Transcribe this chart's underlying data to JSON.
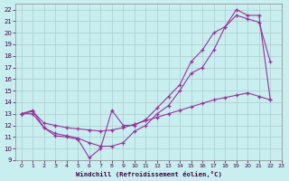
{
  "xlabel": "Windchill (Refroidissement éolien,°C)",
  "line_color": "#993399",
  "bg_color": "#c8eef0",
  "grid_color": "#aacccc",
  "ylim": [
    9,
    22.5
  ],
  "xlim": [
    -0.5,
    23
  ],
  "yticks": [
    9,
    10,
    11,
    12,
    13,
    14,
    15,
    16,
    17,
    18,
    19,
    20,
    21,
    22
  ],
  "xticks": [
    0,
    1,
    2,
    3,
    4,
    5,
    6,
    7,
    8,
    9,
    10,
    11,
    12,
    13,
    14,
    15,
    16,
    17,
    18,
    19,
    20,
    21,
    22,
    23
  ],
  "line1_x": [
    0,
    1,
    2,
    3,
    4,
    5,
    6,
    7,
    8,
    9,
    10,
    11,
    12,
    13,
    14,
    15,
    16,
    17,
    18,
    19,
    20,
    21,
    22
  ],
  "line1_y": [
    13,
    13.3,
    11.8,
    11.1,
    11.0,
    10.8,
    9.2,
    10.0,
    13.3,
    12.0,
    12.0,
    12.5,
    13.5,
    14.5,
    15.5,
    17.5,
    18.5,
    20.0,
    20.5,
    21.5,
    21.2,
    20.9,
    17.5
  ],
  "line2_x": [
    0,
    1,
    2,
    3,
    4,
    5,
    6,
    7,
    8,
    9,
    10,
    11,
    12,
    13,
    14,
    15,
    16,
    17,
    18,
    19,
    20,
    21,
    22
  ],
  "line2_y": [
    13,
    13.0,
    11.8,
    11.3,
    11.1,
    10.9,
    10.5,
    10.2,
    10.2,
    10.5,
    11.5,
    12.0,
    13.0,
    13.7,
    15.0,
    16.5,
    17.0,
    18.5,
    20.5,
    22.0,
    21.5,
    21.5,
    14.2
  ],
  "line3_x": [
    0,
    1,
    2,
    3,
    4,
    5,
    6,
    7,
    8,
    9,
    10,
    11,
    12,
    13,
    14,
    15,
    16,
    17,
    18,
    19,
    20,
    21,
    22
  ],
  "line3_y": [
    13,
    13.2,
    12.2,
    12.0,
    11.8,
    11.7,
    11.6,
    11.5,
    11.6,
    11.8,
    12.1,
    12.4,
    12.7,
    13.0,
    13.3,
    13.6,
    13.9,
    14.2,
    14.4,
    14.6,
    14.8,
    14.5,
    14.2
  ]
}
